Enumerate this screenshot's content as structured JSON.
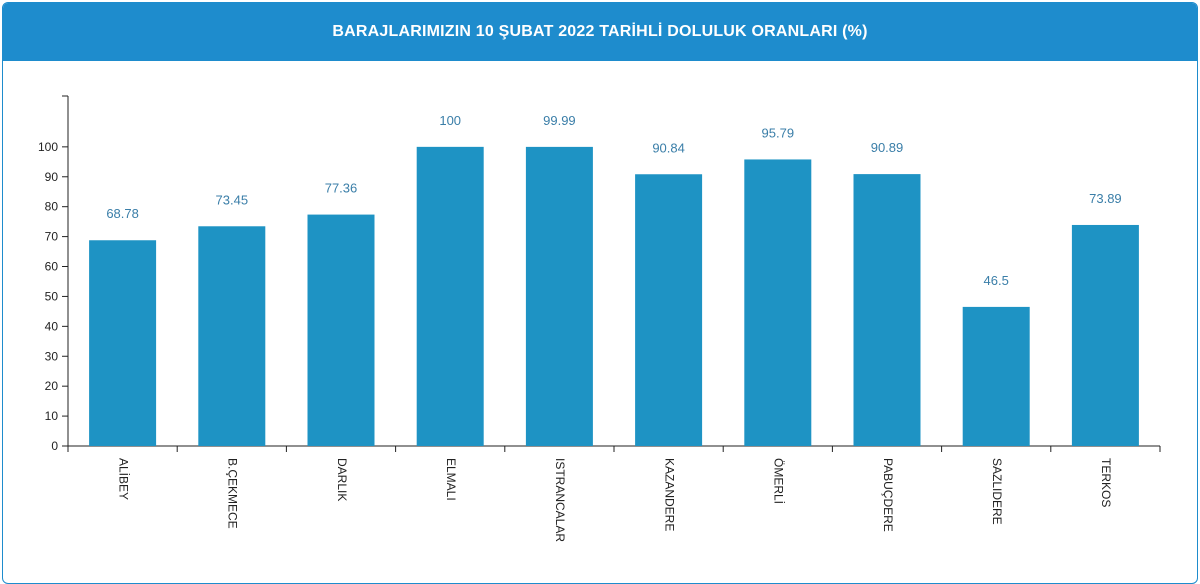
{
  "chart_data": {
    "type": "bar",
    "title": "BARAJLARIMIZIN 10 ŞUBAT 2022 TARİHLİ DOLULUK ORANLARI (%)",
    "categories": [
      "ALİBEY",
      "B.ÇEKMECE",
      "DARLIK",
      "ELMALI",
      "ISTRANCALAR",
      "KAZANDERE",
      "ÖMERLİ",
      "PABUÇDERE",
      "SAZLIDERE",
      "TERKOS"
    ],
    "values": [
      68.78,
      73.45,
      77.36,
      100,
      99.99,
      90.84,
      95.79,
      90.89,
      46.5,
      73.89
    ],
    "value_labels": [
      "68.78",
      "73.45",
      "77.36",
      "100",
      "99.99",
      "90.84",
      "95.79",
      "90.89",
      "46.5",
      "73.89"
    ],
    "yticks": [
      0,
      10,
      20,
      30,
      40,
      50,
      60,
      70,
      80,
      90,
      100
    ],
    "ylim": [
      0,
      117
    ],
    "xlabel": "",
    "ylabel": "",
    "grid": false,
    "bar_color": "#1e93c4",
    "header_color": "#1e8ccd"
  }
}
